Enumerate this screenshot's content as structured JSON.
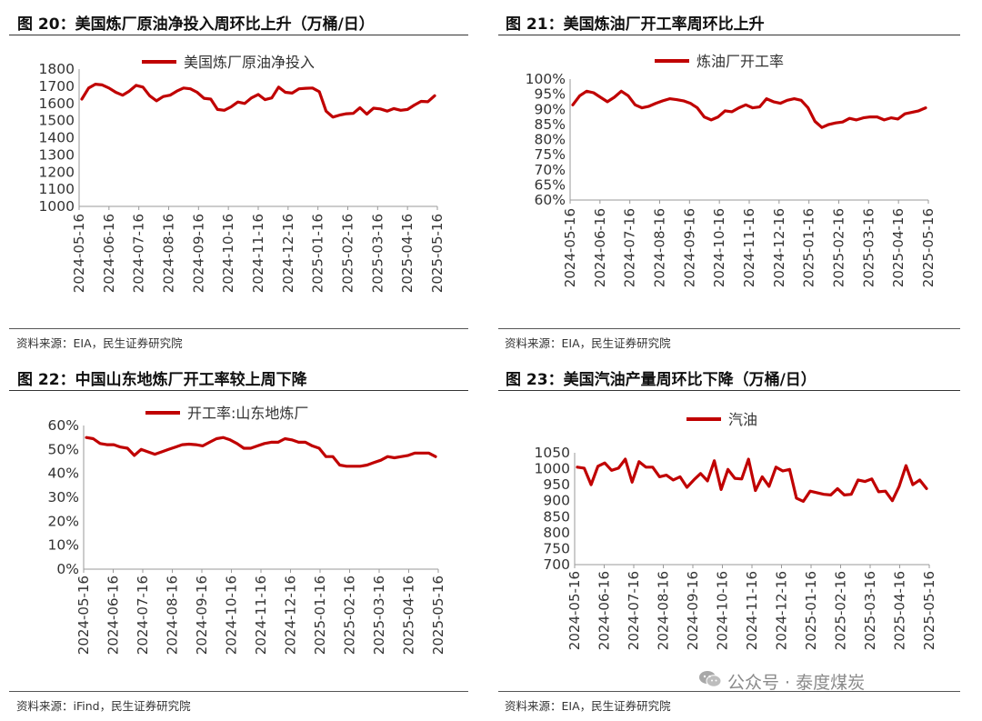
{
  "colors": {
    "line": "#c00000",
    "rule": "#333333"
  },
  "panels": [
    {
      "title": "图 20：美国炼厂原油净投入周环比上升（万桶/日）",
      "source": "资料来源：EIA，民生证券研究院",
      "chart_data": {
        "type": "line",
        "legend_position": "top",
        "yticks": [
          "1800",
          "1700",
          "1600",
          "1500",
          "1400",
          "1300",
          "1200",
          "1100",
          "1000"
        ],
        "ylim": [
          1000,
          1800
        ],
        "xticks": [
          "2024-05-16",
          "2024-06-16",
          "2024-07-16",
          "2024-08-16",
          "2024-09-16",
          "2024-10-16",
          "2024-11-16",
          "2024-12-16",
          "2025-01-16",
          "2025-02-16",
          "2025-03-16",
          "2025-04-16",
          "2025-05-16"
        ],
        "series": [
          {
            "name": "美国炼厂原油净投入",
            "values": [
              1625,
              1690,
              1712,
              1708,
              1690,
              1665,
              1648,
              1672,
              1705,
              1695,
              1645,
              1615,
              1640,
              1648,
              1672,
              1690,
              1685,
              1665,
              1630,
              1625,
              1565,
              1560,
              1580,
              1608,
              1600,
              1632,
              1652,
              1622,
              1632,
              1695,
              1665,
              1660,
              1685,
              1688,
              1690,
              1668,
              1555,
              1520,
              1532,
              1540,
              1542,
              1575,
              1538,
              1572,
              1568,
              1555,
              1570,
              1560,
              1565,
              1590,
              1612,
              1610,
              1645
            ]
          }
        ]
      }
    },
    {
      "title": "图 21：美国炼油厂开工率周环比上升",
      "source": "资料来源：EIA，民生证券研究院",
      "chart_data": {
        "type": "line",
        "legend_position": "top",
        "yticks": [
          "100%",
          "95%",
          "90%",
          "85%",
          "80%",
          "75%",
          "70%",
          "65%",
          "60%"
        ],
        "ylim": [
          60,
          100
        ],
        "xticks": [
          "2024-05-16",
          "2024-06-16",
          "2024-07-16",
          "2024-08-16",
          "2024-09-16",
          "2024-10-16",
          "2024-11-16",
          "2024-12-16",
          "2025-01-16",
          "2025-02-16",
          "2025-03-16",
          "2025-04-16",
          "2025-05-16"
        ],
        "series": [
          {
            "name": "炼油厂开工率",
            "values": [
              91.5,
              94.5,
              96.0,
              95.5,
              94.0,
              92.5,
              94.0,
              96.0,
              94.5,
              91.5,
              90.5,
              91.0,
              92.0,
              92.8,
              93.5,
              93.2,
              92.8,
              92.0,
              90.5,
              87.5,
              86.5,
              87.5,
              89.5,
              89.2,
              90.5,
              91.5,
              90.5,
              90.8,
              93.5,
              92.5,
              92.0,
              93.0,
              93.5,
              93.0,
              90.5,
              86.0,
              84.0,
              85.0,
              85.5,
              85.8,
              87.0,
              86.5,
              87.2,
              87.5,
              87.5,
              86.5,
              87.2,
              86.8,
              88.5,
              89.0,
              89.5,
              90.5
            ]
          }
        ]
      }
    },
    {
      "title": "图 22：中国山东地炼厂开工率较上周下降",
      "source": "资料来源：iFind，民生证券研究院",
      "chart_data": {
        "type": "line",
        "legend_position": "top",
        "yticks": [
          "60%",
          "50%",
          "40%",
          "30%",
          "20%",
          "10%",
          "0%"
        ],
        "ylim": [
          0,
          60
        ],
        "xticks": [
          "2024-05-16",
          "2024-06-16",
          "2024-07-16",
          "2024-08-16",
          "2024-09-16",
          "2024-10-16",
          "2024-11-16",
          "2024-12-16",
          "2025-01-16",
          "2025-02-16",
          "2025-03-16",
          "2025-04-16",
          "2025-05-16"
        ],
        "series": [
          {
            "name": "开工率:山东地炼厂",
            "values": [
              55.0,
              54.5,
              52.5,
              52.0,
              52.0,
              51.0,
              50.5,
              47.5,
              50.0,
              49.0,
              48.0,
              49.0,
              50.0,
              51.0,
              52.0,
              52.2,
              52.0,
              51.5,
              53.0,
              54.5,
              55.0,
              54.0,
              52.5,
              50.5,
              50.5,
              51.5,
              52.5,
              53.0,
              53.0,
              54.5,
              54.0,
              53.0,
              53.0,
              51.5,
              50.5,
              47.0,
              47.0,
              43.5,
              43.0,
              43.0,
              43.0,
              43.5,
              44.5,
              45.5,
              47.0,
              46.5,
              47.0,
              47.5,
              48.5,
              48.5,
              48.5,
              47.0
            ]
          }
        ]
      }
    },
    {
      "title": "图 23：美国汽油产量周环比下降（万桶/日）",
      "source": "资料来源：EIA，民生证券研究院",
      "chart_data": {
        "type": "line",
        "legend_position": "top",
        "yticks": [
          "1050",
          "1000",
          "950",
          "900",
          "850",
          "800",
          "750",
          "700"
        ],
        "ylim": [
          700,
          1050
        ],
        "xticks": [
          "2024-05-16",
          "2024-06-16",
          "2024-07-16",
          "2024-08-16",
          "2024-09-16",
          "2024-10-16",
          "2024-11-16",
          "2024-12-16",
          "2025-01-16",
          "2025-02-16",
          "2025-03-16",
          "2025-04-16",
          "2025-05-16"
        ],
        "series": [
          {
            "name": "汽油",
            "values": [
              1005,
              1002,
              950,
              1008,
              1018,
              995,
              1002,
              1030,
              958,
              1022,
              1005,
              1005,
              975,
              980,
              965,
              975,
              942,
              965,
              985,
              962,
              1025,
              935,
              998,
              970,
              968,
              1030,
              932,
              975,
              945,
              1005,
              993,
              998,
              908,
              898,
              930,
              925,
              920,
              918,
              938,
              918,
              920,
              965,
              960,
              968,
              928,
              930,
              900,
              945,
              1010,
              950,
              965,
              938
            ]
          }
        ]
      }
    }
  ],
  "watermark": {
    "text": "公众号 · 泰度煤炭",
    "icon": "wechat-icon"
  }
}
